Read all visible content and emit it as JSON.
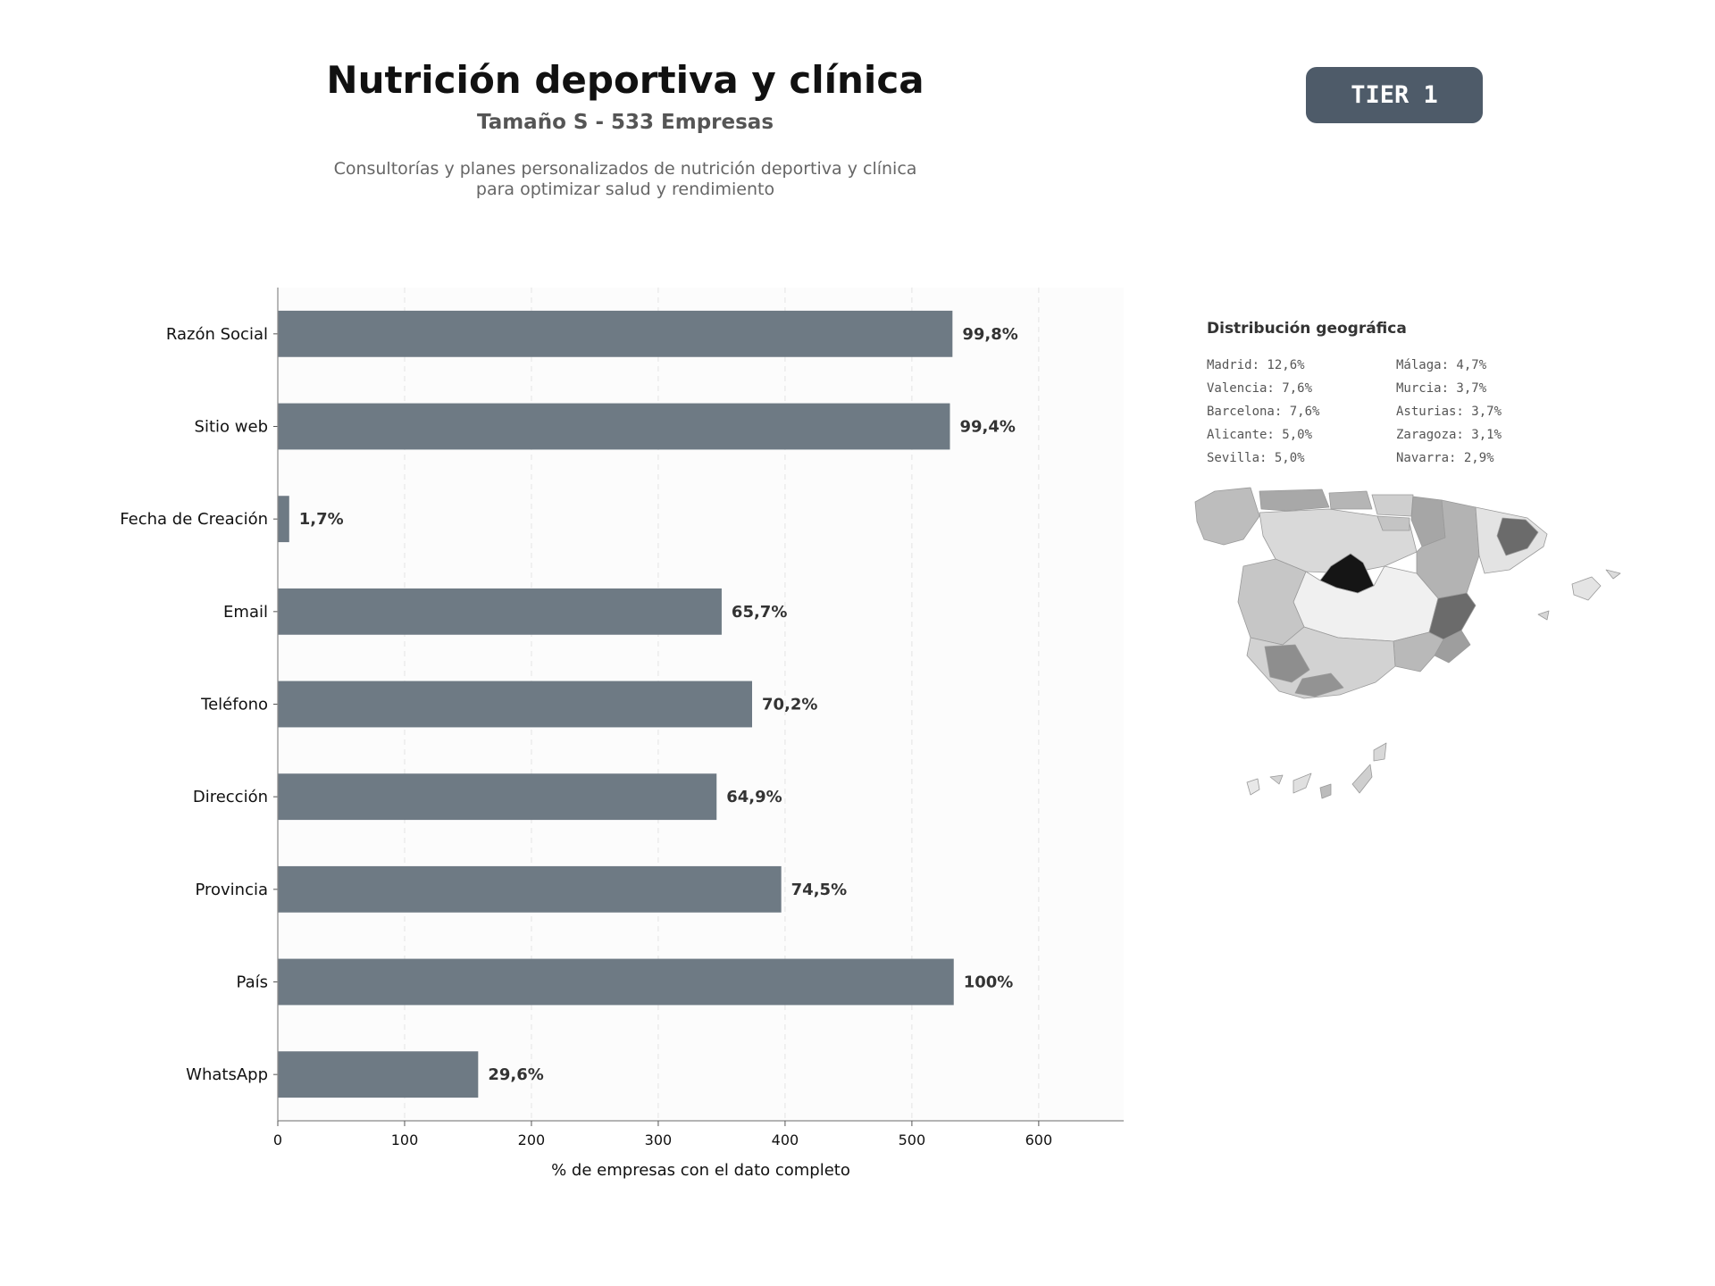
{
  "header": {
    "title": "Nutrición deportiva y clínica",
    "subtitle": "Tamaño S - 533 Empresas",
    "description_line1": "Consultorías y planes personalizados de nutrición deportiva y clínica",
    "description_line2": "para optimizar salud y rendimiento"
  },
  "badge": {
    "label": "TIER 1",
    "color": "#4e5b69"
  },
  "chart_data": {
    "type": "bar",
    "orientation": "horizontal",
    "categories": [
      "Razón Social",
      "Sitio web",
      "Fecha de Creación",
      "Email",
      "Teléfono",
      "Dirección",
      "Provincia",
      "País",
      "WhatsApp"
    ],
    "values": [
      532,
      530,
      9,
      350,
      374,
      346,
      397,
      533,
      158
    ],
    "value_labels": [
      "99,8%",
      "99,4%",
      "1,7%",
      "65,7%",
      "70,2%",
      "64,9%",
      "74,5%",
      "100%",
      "29,6%"
    ],
    "xlabel": "% de empresas con el dato completo",
    "xlim": [
      0,
      667
    ],
    "xticks": [
      0,
      100,
      200,
      300,
      400,
      500,
      600
    ],
    "grid": "vertical-dashed",
    "bar_color": "#6e7a84"
  },
  "geo": {
    "title": "Distribución geográfica",
    "items": [
      "Madrid: 12,6%",
      "Valencia: 7,6%",
      "Barcelona: 7,6%",
      "Alicante: 5,0%",
      "Sevilla: 5,0%",
      "Málaga: 4,7%",
      "Murcia: 3,7%",
      "Asturias: 3,7%",
      "Zaragoza: 3,1%",
      "Navarra: 2,9%"
    ],
    "map_shading": "grayscale choropleth, darkest = Madrid"
  }
}
